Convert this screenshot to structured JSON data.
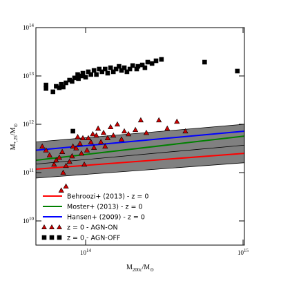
{
  "chart_data": {
    "type": "scatter",
    "xlabel": {
      "main": "M",
      "sub": "200c",
      "rest": "/M",
      "sub2": "⊙"
    },
    "ylabel": {
      "main": "M",
      "sub": "*,25",
      "rest": "/M",
      "sub2": "⊙"
    },
    "xscale": "log",
    "yscale": "log",
    "xlim": [
      48300000000000.0,
      1020000000000000.0
    ],
    "ylim": [
      3160000000.0,
      100000000000000.0
    ],
    "xticks": [
      {
        "value": 100000000000000.0,
        "label": "10",
        "exponent": "14"
      },
      {
        "value": 1000000000000000.0,
        "label": "10",
        "exponent": "15"
      }
    ],
    "yticks": [
      {
        "value": 10000000000.0,
        "label": "10",
        "exponent": "10"
      },
      {
        "value": 100000000000.0,
        "label": "10",
        "exponent": "11"
      },
      {
        "value": 1000000000000.0,
        "label": "10",
        "exponent": "12"
      },
      {
        "value": 10000000000000.0,
        "label": "10",
        "exponent": "13"
      },
      {
        "value": 100000000000000.0,
        "label": "10",
        "exponent": "14"
      }
    ],
    "legend": "lower left",
    "bands": [
      {
        "color": "#808080",
        "x": [
          48300000000000.0,
          1020000000000000.0
        ],
        "lower": [
          77000000000.0,
          160000000000.0
        ],
        "upper": [
          190000000000.0,
          390000000000.0
        ]
      },
      {
        "color": "#808080",
        "x": [
          48300000000000.0,
          1020000000000000.0
        ],
        "lower": [
          150000000000.0,
          370000000000.0
        ],
        "upper": [
          430000000000.0,
          1000000000000.0
        ]
      }
    ],
    "lines": [
      {
        "name": "Behroozi+ (2013) - z = 0",
        "color": "#ff0000",
        "x": [
          48300000000000.0,
          1020000000000000.0
        ],
        "values": [
          118000000000.0,
          250000000000.0
        ]
      },
      {
        "name": "Moster+ (2013) - z = 0",
        "color": "#008000",
        "x": [
          48300000000000.0,
          1020000000000000.0
        ],
        "values": [
          180000000000.0,
          570000000000.0
        ]
      },
      {
        "name": "Hansen+ (2009) - z = 0",
        "color": "#0000ff",
        "x": [
          48300000000000.0,
          1020000000000000.0
        ],
        "values": [
          290000000000.0,
          720000000000.0
        ]
      }
    ],
    "series": [
      {
        "name": "z = 0 - AGN-ON",
        "marker": "triangle",
        "color": "#cc0000",
        "x": [
          53000000000000.0,
          56000000000000.0,
          59000000000000.0,
          63000000000000.0,
          65000000000000.0,
          68000000000000.0,
          71000000000000.0,
          72000000000000.0,
          75000000000000.0,
          79000000000000.0,
          82000000000000.0,
          83000000000000.0,
          87000000000000.0,
          89000000000000.0,
          92000000000000.0,
          94000000000000.0,
          96000000000000.0,
          98000000000000.0,
          102000000000000.0,
          104000000000000.0,
          108000000000000.0,
          111000000000000.0,
          113000000000000.0,
          117000000000000.0,
          120000000000000.0,
          125000000000000.0,
          130000000000000.0,
          133000000000000.0,
          138000000000000.0,
          144000000000000.0,
          150000000000000.0,
          159000000000000.0,
          169000000000000.0,
          176000000000000.0,
          187000000000000.0,
          207000000000000.0,
          224000000000000.0,
          243000000000000.0,
          292000000000000.0,
          330000000000000.0,
          380000000000000.0,
          430000000000000.0,
          75000000000000.0,
          70000000000000.0
        ],
        "values": [
          350000000000.0,
          290000000000.0,
          230000000000.0,
          148000000000.0,
          181000000000.0,
          206000000000.0,
          270000000000.0,
          100000000000.0,
          139000000000.0,
          169000000000.0,
          220000000000.0,
          350000000000.0,
          320000000000.0,
          550000000000.0,
          400000000000.0,
          250000000000.0,
          520000000000.0,
          148000000000.0,
          290000000000.0,
          520000000000.0,
          430000000000.0,
          630000000000.0,
          330000000000.0,
          590000000000.0,
          820000000000.0,
          430000000000.0,
          670000000000.0,
          350000000000.0,
          520000000000.0,
          880000000000.0,
          590000000000.0,
          1000000000000.0,
          490000000000.0,
          720000000000.0,
          630000000000.0,
          770000000000.0,
          1220000000000.0,
          670000000000.0,
          1220000000000.0,
          820000000000.0,
          1140000000000.0,
          720000000000.0,
          52000000000.0,
          43000000000.0
        ]
      },
      {
        "name": "z = 0 - AGN-OFF",
        "marker": "square",
        "color": "#000000",
        "x": [
          56000000000000.0,
          56000000000000.0,
          62000000000000.0,
          65000000000000.0,
          68000000000000.0,
          70000000000000.0,
          72000000000000.0,
          75000000000000.0,
          79000000000000.0,
          82000000000000.0,
          85000000000000.0,
          89000000000000.0,
          90000000000000.0,
          94000000000000.0,
          96000000000000.0,
          100000000000000.0,
          104000000000000.0,
          108000000000000.0,
          113000000000000.0,
          117000000000000.0,
          122000000000000.0,
          127000000000000.0,
          133000000000000.0,
          138000000000000.0,
          144000000000000.0,
          150000000000000.0,
          156000000000000.0,
          163000000000000.0,
          169000000000000.0,
          176000000000000.0,
          183000000000000.0,
          191000000000000.0,
          199000000000000.0,
          211000000000000.0,
          215000000000000.0,
          229000000000000.0,
          238000000000000.0,
          248000000000000.0,
          264000000000000.0,
          280000000000000.0,
          303000000000000.0,
          83000000000000.0,
          570000000000000.0,
          920000000000000.0
        ],
        "values": [
          6500000000000.0,
          5500000000000.0,
          4700000000000.0,
          6100000000000.0,
          5700000000000.0,
          6700000000000.0,
          5900000000000.0,
          7200000000000.0,
          8200000000000.0,
          7700000000000.0,
          9100000000000.0,
          10700000000000.0,
          8800000000000.0,
          10000000000000.0,
          11400000000000.0,
          9400000000000.0,
          12200000000000.0,
          10700000000000.0,
          13000000000000.0,
          10700000000000.0,
          13900000000000.0,
          12200000000000.0,
          13900000000000.0,
          11400000000000.0,
          14800000000000.0,
          12200000000000.0,
          13900000000000.0,
          15800000000000.0,
          13000000000000.0,
          14800000000000.0,
          12200000000000.0,
          13900000000000.0,
          16400000000000.0,
          13900000000000.0,
          15800000000000.0,
          16900000000000.0,
          14800000000000.0,
          19300000000000.0,
          18100000000000.0,
          20600000000000.0,
          22000000000000.0,
          720000000000.0,
          19300000000000.0,
          12600000000000.0
        ]
      }
    ]
  }
}
